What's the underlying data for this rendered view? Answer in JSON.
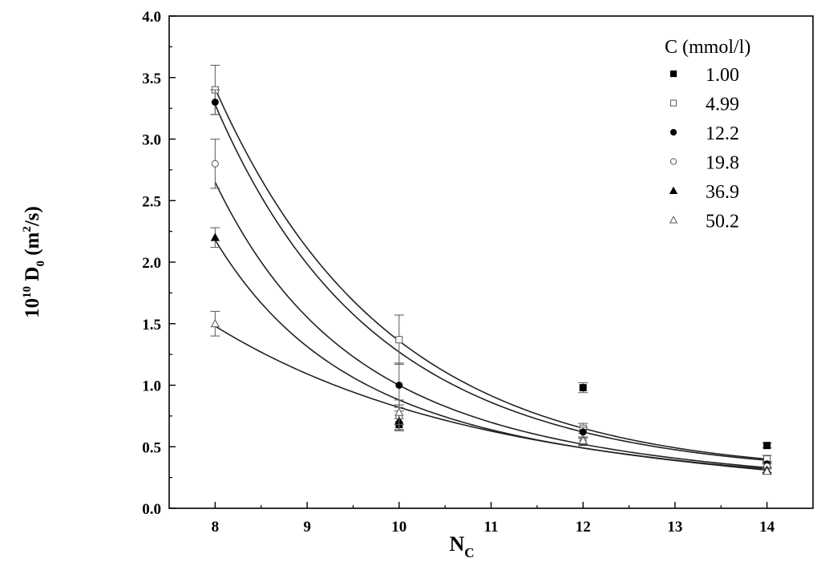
{
  "chart_data": {
    "type": "scatter",
    "title": "",
    "xlabel": {
      "main": "N",
      "sub": "C"
    },
    "ylabel": {
      "pre": "10",
      "pre_sup": "10",
      "main": " D",
      "main_sub": "0",
      "unit_open": " (m",
      "unit_sup": "2",
      "unit_close": "/s)"
    },
    "xlim": [
      7.5,
      14.5
    ],
    "ylim": [
      0.0,
      4.0
    ],
    "x_ticks": [
      8,
      9,
      10,
      11,
      12,
      13,
      14
    ],
    "x_tick_labels": [
      "8",
      "9",
      "10",
      "11",
      "12",
      "13",
      "14"
    ],
    "y_ticks": [
      0.0,
      0.5,
      1.0,
      1.5,
      2.0,
      2.5,
      3.0,
      3.5,
      4.0
    ],
    "y_tick_labels": [
      "0.0",
      "0.5",
      "1.0",
      "1.5",
      "2.0",
      "2.5",
      "3.0",
      "3.5",
      "4.0"
    ],
    "grid": false,
    "legend": {
      "title": "C (mmol/l)",
      "placement": "top-right"
    },
    "series": [
      {
        "name": "1.00",
        "marker": "filled-square",
        "points": [
          {
            "x": 10,
            "y": 0.68,
            "err": 0.05
          },
          {
            "x": 12,
            "y": 0.98,
            "err": 0.04
          },
          {
            "x": 14,
            "y": 0.51,
            "err": 0.02
          }
        ]
      },
      {
        "name": "4.99",
        "marker": "open-square",
        "points": [
          {
            "x": 8,
            "y": 3.4,
            "err": 0.2
          },
          {
            "x": 10,
            "y": 1.37,
            "err": 0.2
          },
          {
            "x": 12,
            "y": 0.65,
            "err": 0.04
          },
          {
            "x": 14,
            "y": 0.4,
            "err": 0.03
          }
        ]
      },
      {
        "name": "12.2",
        "marker": "filled-circle",
        "points": [
          {
            "x": 8,
            "y": 3.3,
            "err": 0.1
          },
          {
            "x": 10,
            "y": 1.0,
            "err": 0.18
          },
          {
            "x": 12,
            "y": 0.62,
            "err": 0.04
          },
          {
            "x": 14,
            "y": 0.36,
            "err": 0.02
          }
        ]
      },
      {
        "name": "19.8",
        "marker": "open-circle",
        "points": [
          {
            "x": 8,
            "y": 2.8,
            "err": 0.2
          },
          {
            "x": 10,
            "y": 0.74,
            "err": 0.1
          },
          {
            "x": 12,
            "y": 0.55,
            "err": 0.03
          },
          {
            "x": 14,
            "y": 0.34,
            "err": 0.02
          }
        ]
      },
      {
        "name": "36.9",
        "marker": "filled-triangle",
        "points": [
          {
            "x": 8,
            "y": 2.2,
            "err": 0.08
          },
          {
            "x": 10,
            "y": 0.71,
            "err": 0.08
          },
          {
            "x": 12,
            "y": 0.54,
            "err": 0.03
          },
          {
            "x": 14,
            "y": 0.31,
            "err": 0.02
          }
        ]
      },
      {
        "name": "50.2",
        "marker": "open-triangle",
        "points": [
          {
            "x": 8,
            "y": 1.5,
            "err": 0.1
          },
          {
            "x": 10,
            "y": 0.78,
            "err": 0.1
          },
          {
            "x": 12,
            "y": 0.55,
            "err": 0.03
          },
          {
            "x": 14,
            "y": 0.3,
            "err": 0.02
          }
        ]
      }
    ],
    "fit_curves": [
      {
        "points": [
          {
            "x": 8,
            "y": 3.41
          },
          {
            "x": 10,
            "y": 1.36
          },
          {
            "x": 12,
            "y": 0.65
          },
          {
            "x": 14,
            "y": 0.4
          }
        ]
      },
      {
        "points": [
          {
            "x": 8,
            "y": 3.28
          },
          {
            "x": 10,
            "y": 1.27
          },
          {
            "x": 12,
            "y": 0.62
          },
          {
            "x": 14,
            "y": 0.39
          }
        ]
      },
      {
        "points": [
          {
            "x": 8,
            "y": 2.65
          },
          {
            "x": 10,
            "y": 1.0
          },
          {
            "x": 12,
            "y": 0.52
          },
          {
            "x": 14,
            "y": 0.33
          }
        ]
      },
      {
        "points": [
          {
            "x": 8,
            "y": 2.18
          },
          {
            "x": 10,
            "y": 0.88
          },
          {
            "x": 12,
            "y": 0.49
          },
          {
            "x": 14,
            "y": 0.31
          }
        ]
      },
      {
        "points": [
          {
            "x": 8,
            "y": 1.48
          },
          {
            "x": 10,
            "y": 0.82
          },
          {
            "x": 12,
            "y": 0.49
          },
          {
            "x": 14,
            "y": 0.32
          }
        ]
      }
    ]
  }
}
